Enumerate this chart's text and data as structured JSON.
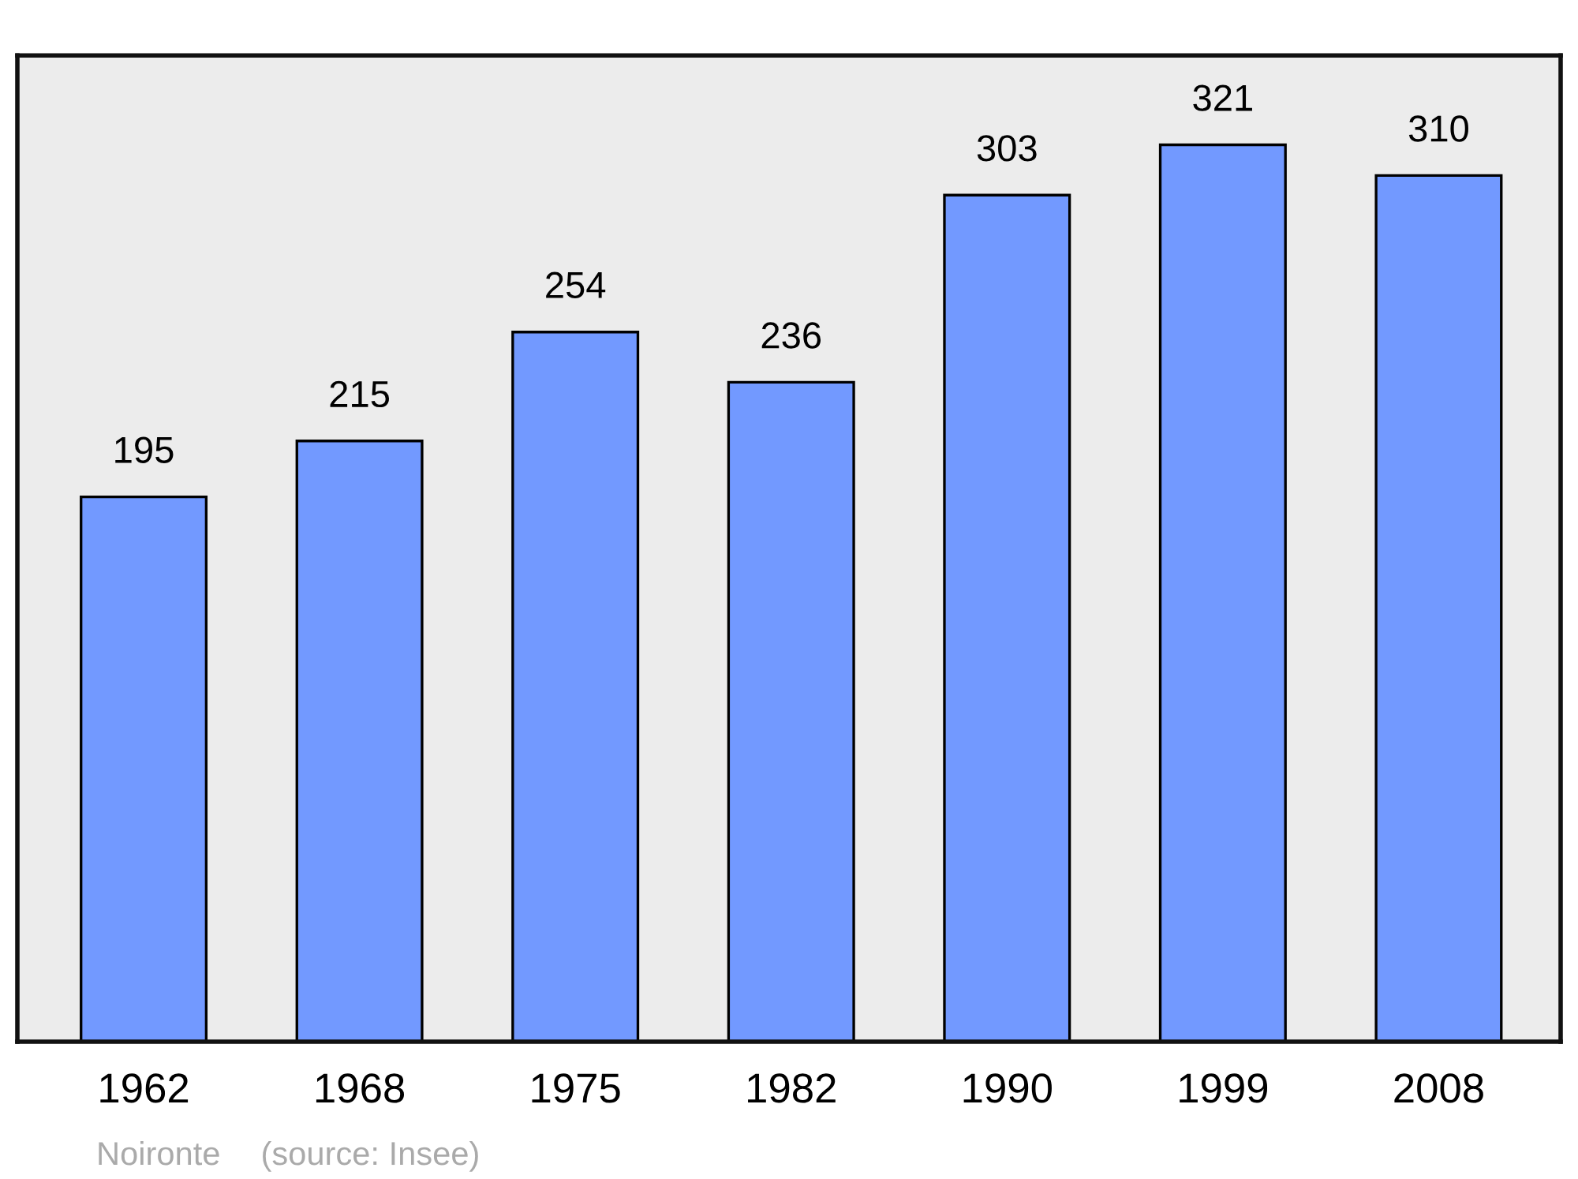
{
  "chart_data": {
    "type": "bar",
    "categories": [
      "1962",
      "1968",
      "1975",
      "1982",
      "1990",
      "1999",
      "2008"
    ],
    "values": [
      195,
      215,
      254,
      236,
      303,
      321,
      310
    ],
    "color": "#7299ff",
    "ylim": [
      0,
      353
    ],
    "data_labels": true,
    "grid": false,
    "legend": false,
    "tick_labels": "x",
    "annotations": [
      "Noironte",
      "(source: Insee)"
    ]
  }
}
